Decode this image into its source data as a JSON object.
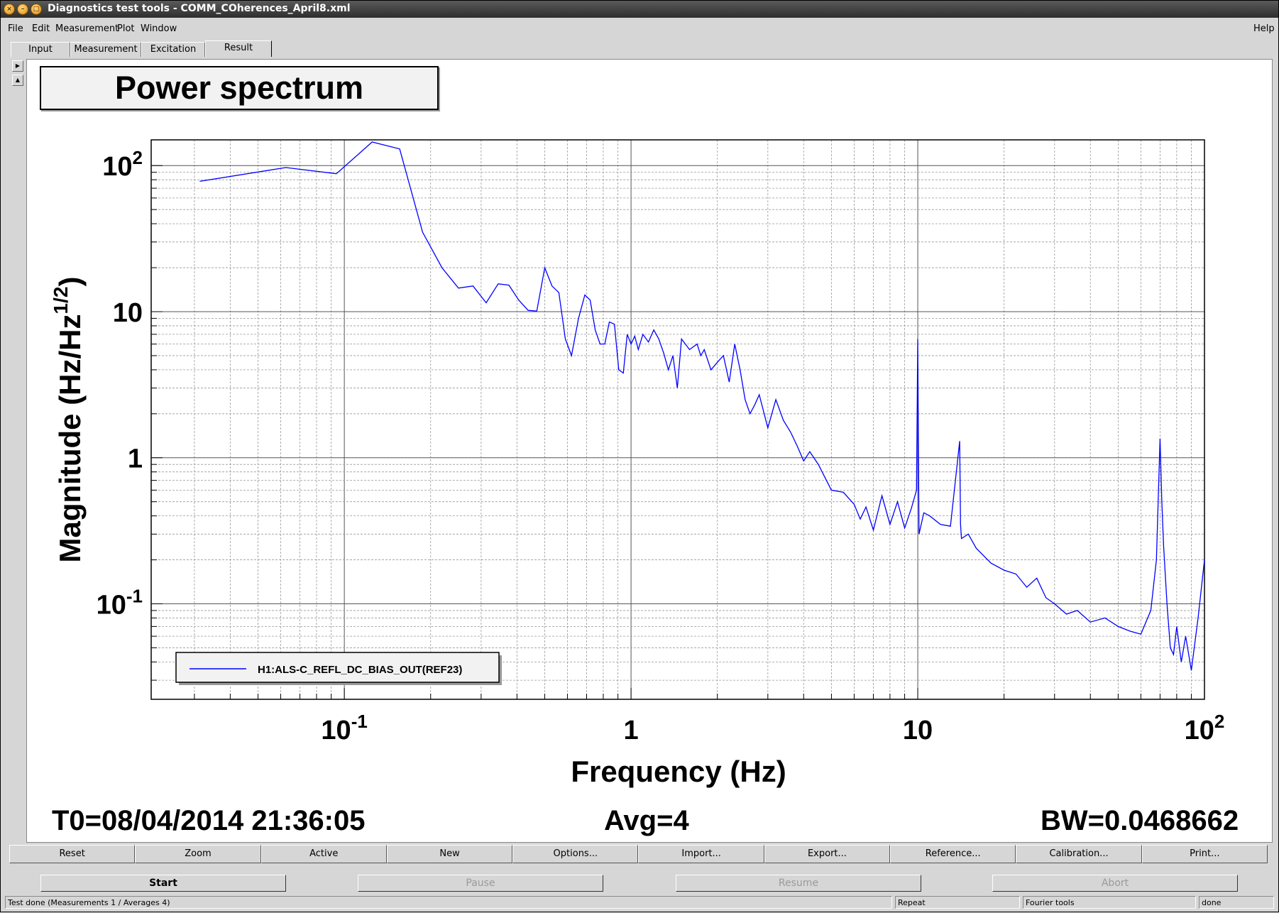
{
  "window": {
    "title": "Diagnostics test tools - COMM_COherences_April8.xml"
  },
  "menu": {
    "file": "File",
    "edit": "Edit",
    "measurement": "Measurement",
    "plot": "Plot",
    "window": "Window",
    "help": "Help"
  },
  "tabs": [
    "Input",
    "Measurement",
    "Excitation",
    "Result"
  ],
  "plot_title": "Power spectrum",
  "chart_data": {
    "type": "line",
    "title": "Power spectrum",
    "xlabel": "Frequency (Hz)",
    "ylabel_main": "Magnitude (Hz/Hz",
    "ylabel_sup": "1/2",
    "ylabel_end": ")",
    "xscale": "log",
    "yscale": "log",
    "xlim": [
      0.0212,
      100
    ],
    "ylim": [
      0.0222,
      150
    ],
    "grid": true,
    "legend_placement": "bottom-left",
    "x_ticks": [
      {
        "value": 0.1,
        "base": "10",
        "exp": "-1"
      },
      {
        "value": 1,
        "base": "1",
        "exp": ""
      },
      {
        "value": 10,
        "base": "10",
        "exp": ""
      },
      {
        "value": 100,
        "base": "10",
        "exp": "2"
      }
    ],
    "y_ticks": [
      {
        "value": 100,
        "base": "10",
        "exp": "2"
      },
      {
        "value": 10,
        "base": "10",
        "exp": ""
      },
      {
        "value": 1,
        "base": "1",
        "exp": ""
      },
      {
        "value": 0.1,
        "base": "10",
        "exp": "-1"
      }
    ],
    "series": [
      {
        "name": "H1:ALS-C_REFL_DC_BIAS_OUT(REF23)",
        "color": "#0000ff",
        "x": [
          0.0313,
          0.0625,
          0.0938,
          0.125,
          0.156,
          0.1875,
          0.219,
          0.25,
          0.281,
          0.3125,
          0.344,
          0.375,
          0.406,
          0.4375,
          0.469,
          0.5,
          0.53,
          0.56,
          0.59,
          0.62,
          0.656,
          0.69,
          0.72,
          0.75,
          0.78,
          0.81,
          0.84,
          0.875,
          0.906,
          0.94,
          0.97,
          1.0,
          1.03,
          1.06,
          1.1,
          1.15,
          1.2,
          1.25,
          1.3,
          1.35,
          1.4,
          1.45,
          1.5,
          1.6,
          1.7,
          1.75,
          1.8,
          1.9,
          2.0,
          2.1,
          2.2,
          2.3,
          2.4,
          2.5,
          2.6,
          2.7,
          2.8,
          3.0,
          3.2,
          3.4,
          3.6,
          3.8,
          4.0,
          4.2,
          4.5,
          4.8,
          5.0,
          5.5,
          6.0,
          6.3,
          6.6,
          7.0,
          7.5,
          8.0,
          8.5,
          9.0,
          9.5,
          9.9,
          10.0,
          10.1,
          10.5,
          11.0,
          12.0,
          13.0,
          14.0,
          14.1,
          14.2,
          15.0,
          16.0,
          18.0,
          20.0,
          22.0,
          24.0,
          26.0,
          28.0,
          30.0,
          33.0,
          36.0,
          40.0,
          45.0,
          50.0,
          55.0,
          60.0,
          65.0,
          68.0,
          70.0,
          71.0,
          72.0,
          74.0,
          76.0,
          78.0,
          80.0,
          83.0,
          86.0,
          90.0,
          95.0,
          100.0
        ],
        "y": [
          78,
          97,
          88,
          145,
          130,
          35,
          20,
          14.5,
          15,
          11.5,
          15.5,
          15.2,
          12,
          10.2,
          10.1,
          20,
          15,
          13.5,
          6.5,
          5,
          9,
          13,
          12,
          7.5,
          6,
          6,
          8.5,
          8.2,
          4,
          3.8,
          7,
          6,
          6.8,
          5.5,
          7,
          6.2,
          7.5,
          6.5,
          5.2,
          4,
          5,
          3,
          6.5,
          5.5,
          6,
          5,
          5.5,
          4,
          4.5,
          5,
          3.3,
          6,
          4,
          2.5,
          2,
          2.3,
          2.7,
          1.6,
          2.5,
          1.8,
          1.5,
          1.2,
          0.95,
          1.1,
          0.9,
          0.7,
          0.6,
          0.58,
          0.48,
          0.38,
          0.46,
          0.32,
          0.55,
          0.35,
          0.5,
          0.33,
          0.45,
          0.6,
          6.5,
          0.3,
          0.42,
          0.4,
          0.35,
          0.34,
          1.3,
          0.35,
          0.28,
          0.3,
          0.24,
          0.19,
          0.17,
          0.16,
          0.13,
          0.15,
          0.11,
          0.1,
          0.085,
          0.09,
          0.075,
          0.08,
          0.07,
          0.065,
          0.062,
          0.09,
          0.2,
          1.35,
          0.5,
          0.25,
          0.1,
          0.05,
          0.045,
          0.07,
          0.04,
          0.06,
          0.035,
          0.08,
          0.2
        ]
      }
    ]
  },
  "info": {
    "t0": "T0=08/04/2014 21:36:05",
    "avg": "Avg=4",
    "bw": "BW=0.0468662"
  },
  "toolbar": [
    "Reset",
    "Zoom",
    "Active",
    "New",
    "Options...",
    "Import...",
    "Export...",
    "Reference...",
    "Calibration...",
    "Print..."
  ],
  "controls": {
    "start": "Start",
    "pause": "Pause",
    "resume": "Resume",
    "abort": "Abort"
  },
  "status": {
    "main": "Test done (Measurements 1 / Averages 4)",
    "repeat": "Repeat",
    "tools": "Fourier tools",
    "state": "done"
  }
}
